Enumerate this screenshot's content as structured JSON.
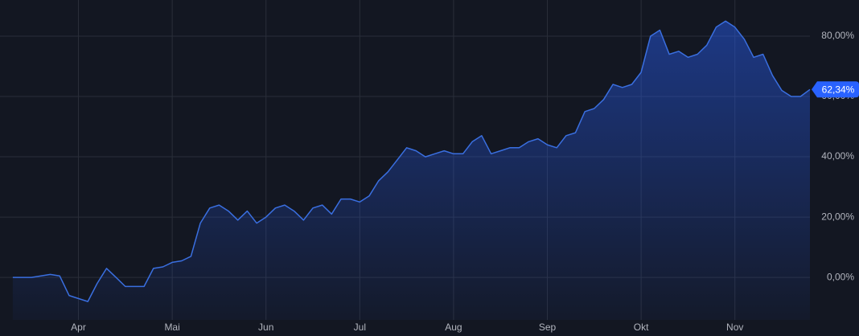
{
  "chart_data": {
    "type": "area",
    "categories": [
      null,
      null,
      null,
      null,
      null,
      null,
      null,
      "Apr",
      null,
      null,
      null,
      null,
      null,
      null,
      null,
      null,
      null,
      "Mai",
      null,
      null,
      null,
      null,
      null,
      null,
      null,
      null,
      null,
      "Jun",
      null,
      null,
      null,
      null,
      null,
      null,
      null,
      null,
      null,
      "Jul",
      null,
      null,
      null,
      null,
      null,
      null,
      null,
      null,
      null,
      "Aug",
      null,
      null,
      null,
      null,
      null,
      null,
      null,
      null,
      null,
      "Sep",
      null,
      null,
      null,
      null,
      null,
      null,
      null,
      null,
      null,
      "Okt",
      null,
      null,
      null,
      null,
      null,
      null,
      null,
      null,
      null,
      "Nov",
      null,
      null,
      null,
      null,
      null,
      null,
      null,
      null
    ],
    "series": [
      {
        "color": "#3a6fe0",
        "values": [
          0,
          0,
          0,
          0.5,
          1,
          0.5,
          -6,
          -7,
          -8,
          -2,
          3,
          0,
          -3,
          -3,
          -3,
          3,
          3.5,
          5,
          5.5,
          7,
          18,
          23,
          24,
          22,
          19,
          22,
          18,
          20,
          23,
          24,
          22,
          19,
          23,
          24,
          21,
          26,
          26,
          25,
          27,
          32,
          35,
          39,
          43,
          42,
          40,
          41,
          42,
          41,
          41,
          45,
          47,
          41,
          42,
          43,
          43,
          45,
          46,
          44,
          43,
          47,
          48,
          55,
          56,
          59,
          64,
          63,
          64,
          68,
          80,
          82,
          74,
          75,
          73,
          74,
          77,
          83,
          85,
          83,
          79,
          73,
          74,
          67,
          62,
          60,
          60,
          62.34
        ]
      }
    ],
    "current_value": {
      "value": 62.34,
      "label": "62,34%"
    },
    "ylim": [
      -14.1,
      92
    ],
    "yticks": [
      {
        "value": 0,
        "label": "0,00%"
      },
      {
        "value": 20,
        "label": "20,00%"
      },
      {
        "value": 40,
        "label": "40,00%"
      },
      {
        "value": 60,
        "label": "60,00%"
      },
      {
        "value": 80,
        "label": "80,00%"
      }
    ],
    "grid": true
  }
}
